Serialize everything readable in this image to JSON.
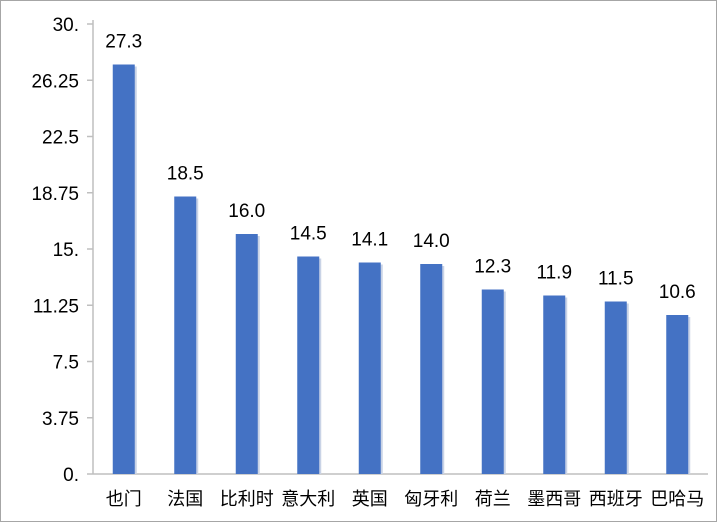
{
  "chart_data": {
    "type": "bar",
    "title": "",
    "xlabel": "",
    "ylabel": "",
    "categories": [
      "也门",
      "法国",
      "比利时",
      "意大利",
      "英国",
      "匈牙利",
      "荷兰",
      "墨西哥",
      "西班牙",
      "巴哈马"
    ],
    "values": [
      27.3,
      18.5,
      16.0,
      14.5,
      14.1,
      14.0,
      12.3,
      11.9,
      11.5,
      10.6
    ],
    "value_labels": [
      "27.3",
      "18.5",
      "16.0",
      "14.5",
      "14.1",
      "14.0",
      "12.3",
      "11.9",
      "11.5",
      "10.6"
    ],
    "ylim": [
      0,
      30
    ],
    "yticks": [
      0,
      3.75,
      7.5,
      11.25,
      15,
      18.75,
      22.5,
      26.25,
      30
    ],
    "ytick_labels": [
      "0.",
      "3.75",
      "7.5",
      "11.25",
      "15.",
      "18.75",
      "22.5",
      "26.25",
      "30."
    ],
    "grid": false,
    "legend": "none",
    "bar_color": "#4472c4",
    "axis_color": "#bfbfbf"
  }
}
